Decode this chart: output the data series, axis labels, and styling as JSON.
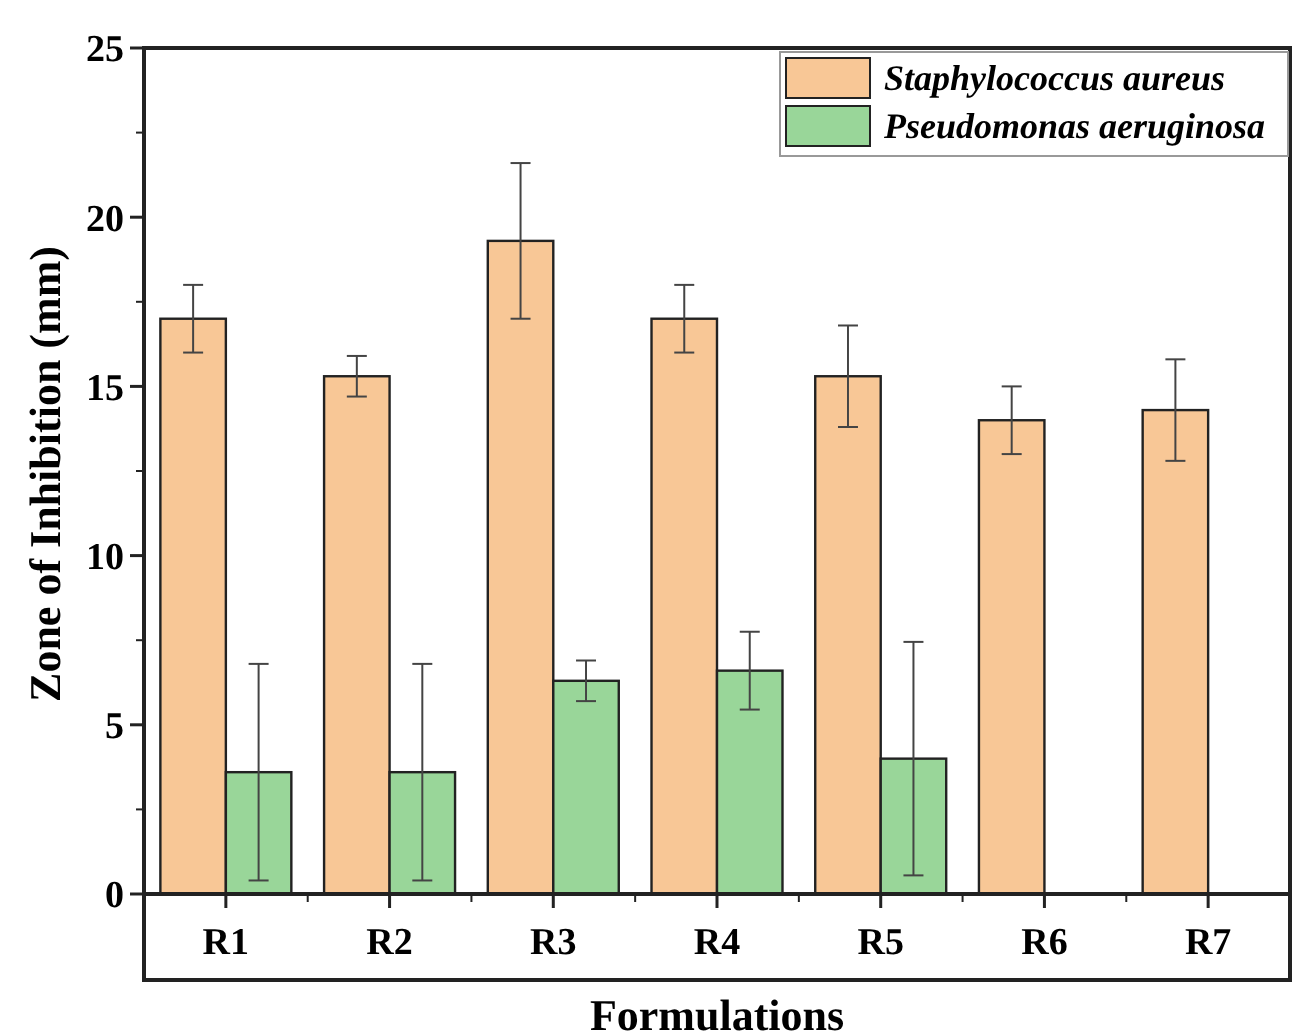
{
  "chart_data": {
    "type": "bar",
    "xlabel": "Formulations",
    "ylabel": "Zone of Inhibition (mm)",
    "categories": [
      "R1",
      "R2",
      "R3",
      "R4",
      "R5",
      "R6",
      "R7"
    ],
    "series": [
      {
        "name": "Staphylococcus aureus",
        "color": "#f8c796",
        "values": [
          17,
          15.3,
          19.3,
          17,
          15.3,
          14,
          14.3
        ],
        "errors": [
          1,
          0.6,
          2.3,
          1,
          1.5,
          1,
          1.5
        ]
      },
      {
        "name": "Pseudomonas aeruginosa",
        "color": "#99d699",
        "values": [
          3.6,
          3.6,
          6.3,
          6.6,
          4,
          null,
          null
        ],
        "errors": [
          3.2,
          3.2,
          0.6,
          1.15,
          3.45,
          null,
          null
        ]
      }
    ],
    "ylim": [
      0,
      25
    ],
    "yticks": [
      0,
      5,
      10,
      15,
      20,
      25
    ],
    "legend": "top right",
    "grid": false
  }
}
